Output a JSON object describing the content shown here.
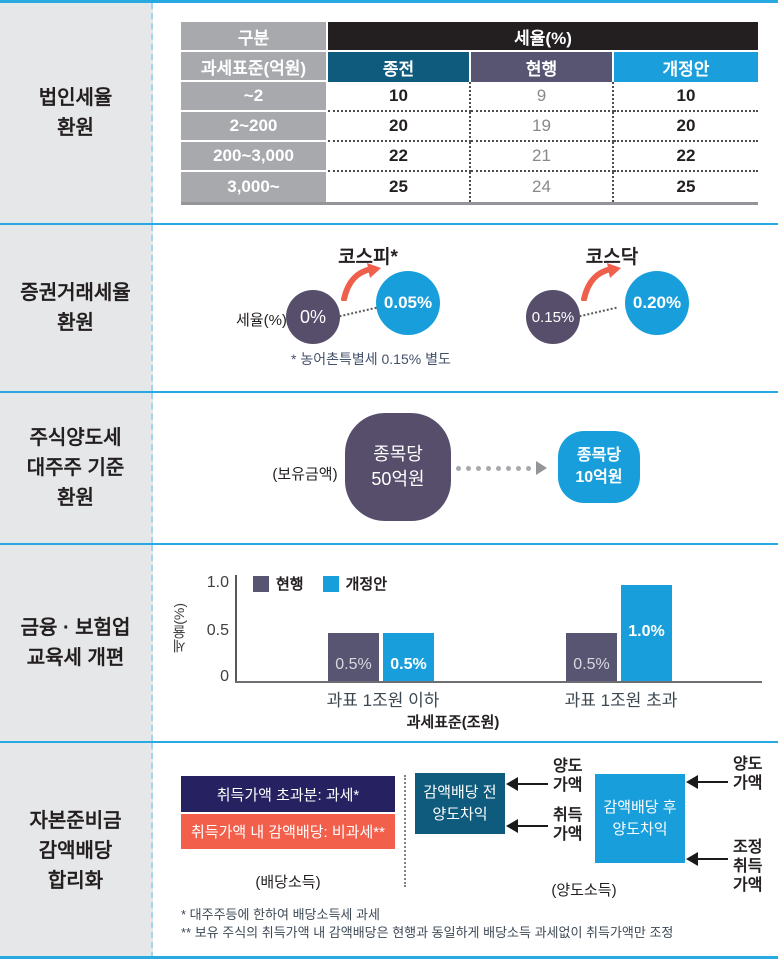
{
  "colors": {
    "divider_blue": "#29a9e1",
    "purple": "#564e6b",
    "bright_blue": "#189fdb",
    "teal": "#0e5b7d",
    "navy": "#262262",
    "coral": "#f2604c",
    "red_arrow": "#ee5f4c",
    "gray_header": "#a7a9ac",
    "black_header": "#231f20"
  },
  "sections": {
    "corporate_tax": {
      "label": "법인세율\n환원",
      "table": {
        "row_header_top": "구분",
        "row_header_bottom": "과세표준(억원)",
        "header_group": "세율(%)",
        "col_headers": [
          "종전",
          "현행",
          "개정안"
        ],
        "rows": [
          {
            "base": "~2",
            "prev": "10",
            "current": "9",
            "revised": "10"
          },
          {
            "base": "2~200",
            "prev": "20",
            "current": "19",
            "revised": "20"
          },
          {
            "base": "200~3,000",
            "prev": "22",
            "current": "21",
            "revised": "22"
          },
          {
            "base": "3,000~",
            "prev": "25",
            "current": "24",
            "revised": "25"
          }
        ]
      }
    },
    "securities_tax": {
      "label": "증권거래세율\n환원",
      "axis_label": "세율(%)",
      "groups": [
        {
          "title": "코스피*",
          "from": "0%",
          "to": "0.05%"
        },
        {
          "title": "코스닥",
          "from": "0.15%",
          "to": "0.20%"
        }
      ],
      "footnote": "* 농어촌특별세 0.15% 별도"
    },
    "capital_gains": {
      "label": "주식양도세\n대주주 기준\n환원",
      "holding_label": "(보유금액)",
      "from": "종목당\n50억원",
      "to": "종목당\n10억원"
    },
    "education_tax": {
      "label": "금융 · 보험업\n교육세 개편"
    },
    "capital_reserve": {
      "label": "자본준비금\n감액배당\n합리화",
      "dividend_boxes": [
        {
          "text": "취득가액 초과분: 과세*"
        },
        {
          "text": "취득가액 내 감액배당: 비과세**"
        }
      ],
      "dividend_caption": "(배당소득)",
      "transfer_boxes": [
        {
          "text": "감액배당 전\n양도차익"
        },
        {
          "text": "감액배당 후\n양도차익"
        }
      ],
      "arrow_labels": {
        "pre_top": "양도\n가액",
        "pre_bottom": "취득\n가액",
        "post_top": "양도\n가액",
        "post_bottom": "조정\n취득\n가액"
      },
      "transfer_caption": "(양도소득)",
      "footnotes": [
        "* 대주주등에 한하여 배당소득세 과세",
        "** 보유 주식의 취득가액 내 감액배당은 현행과 동일하게 배당소득 과세없이 취득가액만 조정"
      ]
    }
  },
  "chart_data": {
    "type": "bar",
    "categories": [
      "과표 1조원 이하",
      "과표 1조원 초과"
    ],
    "series": [
      {
        "name": "현행",
        "values": [
          0.5,
          0.5
        ],
        "labels": [
          "0.5%",
          "0.5%"
        ],
        "color": "#575571"
      },
      {
        "name": "개정안",
        "values": [
          0.5,
          1.0
        ],
        "labels": [
          "0.5%",
          "1.0%"
        ],
        "color": "#189fdb"
      }
    ],
    "ylabel": "세율(%)",
    "xlabel": "과세표준(조원)",
    "ytick_labels": [
      "1.0",
      "0.5",
      "0"
    ],
    "ylim": [
      0,
      1.0
    ],
    "legend_position": "top-left",
    "grid": false
  }
}
